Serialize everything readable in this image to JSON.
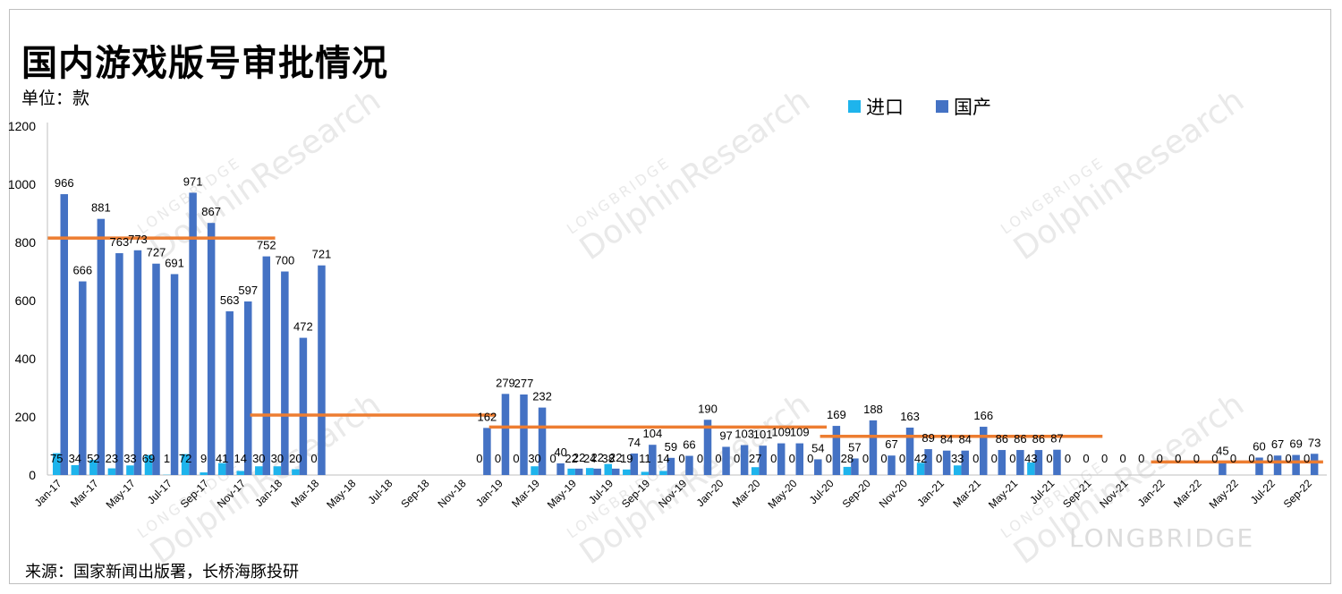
{
  "title": "国内游戏版号审批情况",
  "unit": "单位：款",
  "source": "来源：国家新闻出版署，长桥海豚投研",
  "watermark": {
    "main": "DolphinResearch",
    "sub": "LONGBRIDGE",
    "brand": "LONGBRIDGE"
  },
  "colors": {
    "import": "#1eb4ec",
    "domestic": "#4472c4",
    "trend": "#ed7d31"
  },
  "chart_data": {
    "type": "bar",
    "ylim": [
      0,
      1200
    ],
    "yticks": [
      0,
      200,
      400,
      600,
      800,
      1000,
      1200
    ],
    "legend_position": "top-right",
    "months": [
      "Jan-17",
      "Feb-17",
      "Mar-17",
      "Apr-17",
      "May-17",
      "Jun-17",
      "Jul-17",
      "Aug-17",
      "Sep-17",
      "Oct-17",
      "Nov-17",
      "Dec-17",
      "Jan-18",
      "Feb-18",
      "Mar-18",
      "Apr-18",
      "May-18",
      "Jun-18",
      "Jul-18",
      "Aug-18",
      "Sep-18",
      "Oct-18",
      "Nov-18",
      "Dec-18",
      "Jan-19",
      "Feb-19",
      "Mar-19",
      "Apr-19",
      "May-19",
      "Jun-19",
      "Jul-19",
      "Aug-19",
      "Sep-19",
      "Oct-19",
      "Nov-19",
      "Dec-19",
      "Jan-20",
      "Feb-20",
      "Mar-20",
      "Apr-20",
      "May-20",
      "Jun-20",
      "Jul-20",
      "Aug-20",
      "Sep-20",
      "Oct-20",
      "Nov-20",
      "Dec-20",
      "Jan-21",
      "Feb-21",
      "Mar-21",
      "Apr-21",
      "May-21",
      "Jun-21",
      "Jul-21",
      "Aug-21",
      "Sep-21",
      "Oct-21",
      "Nov-21",
      "Dec-21",
      "Jan-22",
      "Feb-22",
      "Mar-22",
      "Apr-22",
      "May-22",
      "Jun-22",
      "Jul-22",
      "Aug-22",
      "Sep-22"
    ],
    "x_tick_labels": [
      "Jan-17",
      "Mar-17",
      "May-17",
      "Jul-17",
      "Sep-17",
      "Nov-17",
      "Jan-18",
      "Mar-18",
      "May-18",
      "Jul-18",
      "Sep-18",
      "Nov-18",
      "Jan-19",
      "Mar-19",
      "May-19",
      "Jul-19",
      "Sep-19",
      "Nov-19",
      "Jan-20",
      "Mar-20",
      "May-20",
      "Jul-20",
      "Sep-20",
      "Nov-20",
      "Jan-21",
      "Mar-21",
      "May-21",
      "Jul-21",
      "Sep-21",
      "Nov-21",
      "Jan-22",
      "Mar-22",
      "May-22",
      "Jul-22",
      "Sep-22"
    ],
    "series": [
      {
        "name": "进口",
        "values": [
          75,
          34,
          52,
          23,
          33,
          69,
          1,
          72,
          9,
          41,
          14,
          30,
          30,
          20,
          0,
          null,
          null,
          null,
          null,
          null,
          null,
          null,
          null,
          0,
          0,
          0,
          30,
          0,
          22,
          24,
          38,
          19,
          11,
          14,
          0,
          0,
          0,
          0,
          27,
          0,
          0,
          0,
          0,
          28,
          0,
          0,
          0,
          42,
          0,
          33,
          0,
          0,
          0,
          43,
          0,
          0,
          0,
          0,
          0,
          0,
          0,
          0,
          0,
          0,
          0,
          0,
          0,
          0,
          0
        ]
      },
      {
        "name": "国产",
        "values": [
          966,
          666,
          881,
          763,
          773,
          727,
          691,
          971,
          867,
          563,
          597,
          752,
          700,
          472,
          721,
          null,
          null,
          null,
          null,
          null,
          null,
          null,
          null,
          162,
          279,
          277,
          232,
          40,
          22,
          22,
          22,
          74,
          104,
          59,
          66,
          190,
          97,
          103,
          101,
          109,
          109,
          54,
          169,
          57,
          188,
          67,
          163,
          89,
          84,
          84,
          166,
          86,
          86,
          86,
          87,
          null,
          null,
          null,
          null,
          null,
          null,
          null,
          null,
          45,
          null,
          60,
          67,
          69,
          73
        ]
      }
    ],
    "trend_lines": [
      {
        "from": "Jan-17",
        "to": "Dec-17",
        "value": 815
      },
      {
        "from": "Dec-17",
        "to": "Dec-18",
        "value": 206
      },
      {
        "from": "Jan-19",
        "to": "Jun-20",
        "value": 165
      },
      {
        "from": "Jul-20",
        "to": "Sep-21",
        "value": 133
      },
      {
        "from": "Jan-22",
        "to": "Sep-22",
        "value": 45
      }
    ]
  }
}
